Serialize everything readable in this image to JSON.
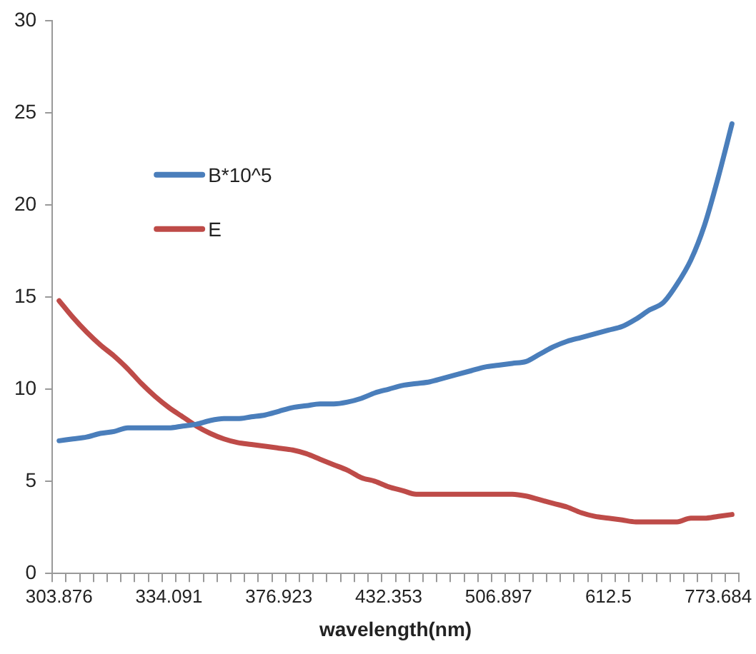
{
  "chart_data": {
    "type": "line",
    "xlabel": "wavelength(nm)",
    "categories": [
      "303.876",
      null,
      null,
      null,
      null,
      null,
      null,
      null,
      "334.091",
      null,
      null,
      null,
      null,
      null,
      null,
      null,
      "376.923",
      null,
      null,
      null,
      null,
      null,
      null,
      null,
      "432.353",
      null,
      null,
      null,
      null,
      null,
      null,
      null,
      "506.897",
      null,
      null,
      null,
      null,
      null,
      null,
      null,
      "612.5",
      null,
      null,
      null,
      null,
      null,
      null,
      null,
      "773.684",
      null
    ],
    "series": [
      {
        "name": "B*10^5",
        "color": "#4a7ebb",
        "values": [
          7.2,
          7.3,
          7.4,
          7.6,
          7.7,
          7.9,
          7.9,
          7.9,
          7.9,
          8.0,
          8.1,
          8.3,
          8.4,
          8.4,
          8.5,
          8.6,
          8.8,
          9.0,
          9.1,
          9.2,
          9.2,
          9.3,
          9.5,
          9.8,
          10.0,
          10.2,
          10.3,
          10.4,
          10.6,
          10.8,
          11.0,
          11.2,
          11.3,
          11.4,
          11.5,
          11.9,
          12.3,
          12.6,
          12.8,
          13.0,
          13.2,
          13.4,
          13.8,
          14.3,
          14.7,
          15.7,
          17.0,
          18.9,
          21.5,
          24.4
        ]
      },
      {
        "name": "E",
        "color": "#be4b48",
        "values": [
          14.8,
          13.9,
          13.1,
          12.4,
          11.8,
          11.1,
          10.3,
          9.6,
          9.0,
          8.5,
          8.0,
          7.6,
          7.3,
          7.1,
          7.0,
          6.9,
          6.8,
          6.7,
          6.5,
          6.2,
          5.9,
          5.6,
          5.2,
          5.0,
          4.7,
          4.5,
          4.3,
          4.3,
          4.3,
          4.3,
          4.3,
          4.3,
          4.3,
          4.3,
          4.2,
          4.0,
          3.8,
          3.6,
          3.3,
          3.1,
          3.0,
          2.9,
          2.8,
          2.8,
          2.8,
          2.8,
          3.0,
          3.0,
          3.1,
          3.2
        ]
      }
    ],
    "ylim": [
      0,
      30
    ],
    "yticks": [
      0,
      5,
      10,
      15,
      20,
      25,
      30
    ],
    "grid": false,
    "legend": "top left",
    "marker": "none",
    "line_style": "solid"
  }
}
